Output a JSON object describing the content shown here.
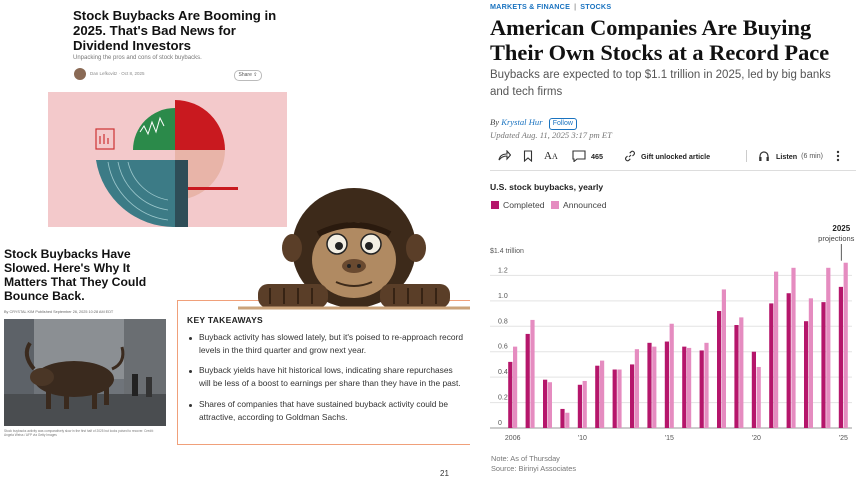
{
  "article1": {
    "title": "Stock Buybacks Are Booming in 2025. That's Bad News for Dividend Investors",
    "subtitle": "Unpacking the pros and cons of stock buybacks.",
    "meta": "Dan Lefkovitz · Oct 8, 2025",
    "share_label": "Share"
  },
  "article2": {
    "title": "Stock Buybacks Have Slowed. Here's Why It Matters That They Could Bounce Back.",
    "meta": "By CRYSTAL KIM  Published September 26, 2025 10:28 AM EDT",
    "caption": "Stock buybacks activity was comparatively slow in the first half of 2025 but looks poised to recover. Credit: Angela Weiss / AFP via Getty Images"
  },
  "takeaways": {
    "title": "KEY TAKEAWAYS",
    "items": [
      "Buyback activity has slowed lately, but it's poised to re-approach record levels in the third quarter and grow next year.",
      "Buyback yields have hit historical lows, indicating share repurchases will be less of a boost to earnings per share than they have in the past.",
      "Shares of companies that have sustained buyback activity could be attractive, according to Goldman Sachs."
    ]
  },
  "page_number": "21",
  "wsj": {
    "category": "MARKETS & FINANCE",
    "subcategory": "STOCKS",
    "headline": "American Companies Are Buying Their Own Stocks at a Record Pace",
    "dek": "Buybacks are expected to top $1.1 trillion in 2025, led by big banks and tech firms",
    "by_prefix": "By",
    "author": "Krystal Hur",
    "follow_label": "Follow",
    "updated": "Updated Aug. 11, 2025 3:17 pm ET",
    "toolbar": {
      "comment_count": "465",
      "gift_label": "Gift unlocked article",
      "listen_label": "Listen",
      "listen_duration": "(6 min)"
    },
    "chart_title": "U.S. stock buybacks, yearly",
    "note": "Note: As of Thursday",
    "source": "Source: Birinyi Associates",
    "colors": {
      "completed": "#b5166b",
      "announced": "#e58cc0"
    }
  },
  "chart_data": {
    "type": "bar",
    "title": "U.S. stock buybacks, yearly",
    "y_unit_label": "$1.4 trillion",
    "ylim": [
      0,
      1.4
    ],
    "yticks": [
      "0",
      "0.2",
      "0.4",
      "0.6",
      "0.8",
      "1.0",
      "1.2"
    ],
    "xtick_labels": [
      {
        "year": 2006,
        "label": "2006"
      },
      {
        "year": 2010,
        "label": "'10"
      },
      {
        "year": 2015,
        "label": "'15"
      },
      {
        "year": 2020,
        "label": "'20"
      },
      {
        "year": 2025,
        "label": "'25"
      }
    ],
    "annotation": {
      "year": 2025,
      "line1": "2025",
      "line2": "projections"
    },
    "categories": [
      2006,
      2007,
      2008,
      2009,
      2010,
      2011,
      2012,
      2013,
      2014,
      2015,
      2016,
      2017,
      2018,
      2019,
      2020,
      2021,
      2022,
      2023,
      2024,
      2025
    ],
    "series": [
      {
        "name": "Completed",
        "values": [
          0.52,
          0.74,
          0.38,
          0.15,
          0.34,
          0.49,
          0.46,
          0.5,
          0.67,
          0.68,
          0.64,
          0.61,
          0.92,
          0.81,
          0.6,
          0.98,
          1.06,
          0.84,
          0.99,
          1.11
        ]
      },
      {
        "name": "Announced",
        "values": [
          0.64,
          0.85,
          0.36,
          0.12,
          0.37,
          0.53,
          0.46,
          0.62,
          0.64,
          0.82,
          0.63,
          0.67,
          1.09,
          0.87,
          0.48,
          1.23,
          1.26,
          1.02,
          1.26,
          1.3
        ]
      }
    ]
  }
}
